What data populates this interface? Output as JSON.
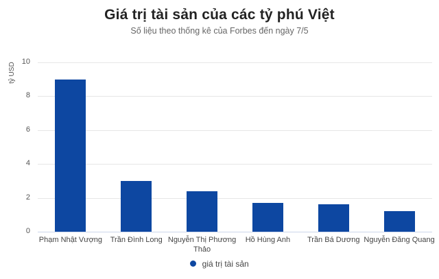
{
  "chart_data": {
    "type": "bar",
    "title": "Giá trị tài sản của các tỷ phú Việt",
    "subtitle": "Số liệu theo thống kê của Forbes đến ngày 7/5",
    "xlabel": "",
    "ylabel": "tỷ USD",
    "ylim": [
      0,
      10
    ],
    "yticks": [
      0,
      2,
      4,
      6,
      8,
      10
    ],
    "grid": true,
    "legend_position": "bottom",
    "categories": [
      "Phạm Nhật Vượng",
      "Trần Đình Long",
      "Nguyễn Thị Phương Thảo",
      "Hồ Hùng Anh",
      "Trần Bá Dương",
      "Nguyễn Đăng Quang"
    ],
    "series": [
      {
        "name": "giá trị tài sản",
        "color": "#0d47a1",
        "values": [
          9.0,
          3.0,
          2.4,
          1.7,
          1.6,
          1.2
        ]
      }
    ]
  },
  "header": {
    "title": "Giá trị tài sản của các tỷ phú Việt",
    "subtitle": "Số liệu theo thống kê của Forbes đến ngày 7/5"
  },
  "axis": {
    "ylabel": "tỷ USD",
    "yticks": [
      "0",
      "2",
      "4",
      "6",
      "8",
      "10"
    ]
  },
  "xlabels": [
    "Phạm Nhật Vượng",
    "Trần Đình Long",
    "Nguyễn Thị Phương Thảo",
    "Hồ Hùng Anh",
    "Trần Bá Dương",
    "Nguyễn Đăng Quang"
  ],
  "legend": {
    "label": "giá trị tài sản",
    "color": "#0d47a1"
  }
}
